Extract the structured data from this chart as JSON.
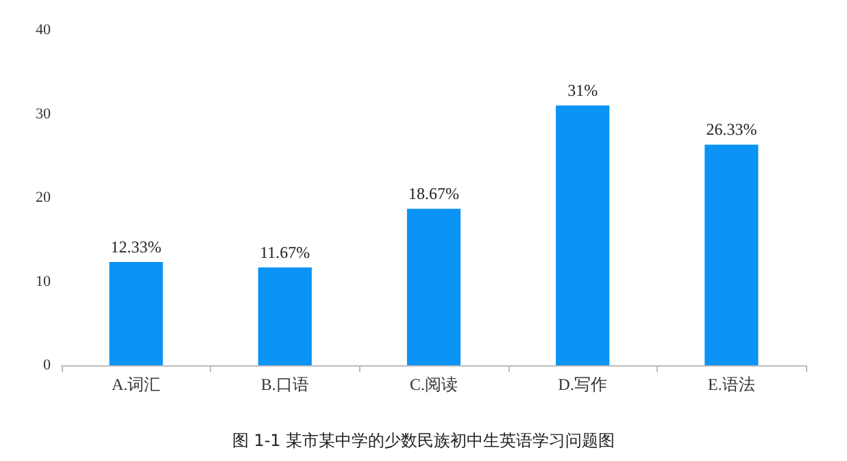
{
  "chart_data": {
    "type": "bar",
    "title": "图 1-1 某市某中学的少数民族初中生英语学习问题图",
    "categories": [
      "A.词汇",
      "B.口语",
      "C.阅读",
      "D.写作",
      "E.语法"
    ],
    "values": [
      12.33,
      11.67,
      18.67,
      31,
      26.33
    ],
    "value_labels": [
      "12.33%",
      "11.67%",
      "18.67%",
      "31%",
      "26.33%"
    ],
    "color": "#0b93f6",
    "ylim": [
      0,
      40
    ],
    "yticks": [
      0,
      10,
      20,
      30,
      40
    ]
  }
}
